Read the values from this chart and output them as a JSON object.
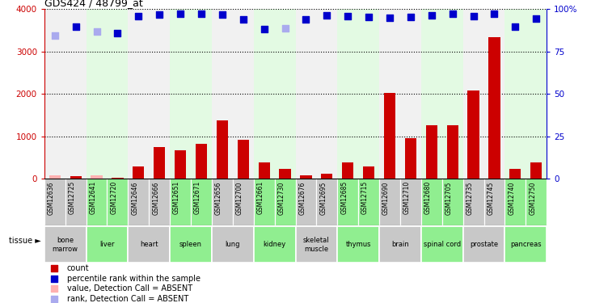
{
  "title": "GDS424 / 48799_at",
  "samples": [
    "GSM12636",
    "GSM12725",
    "GSM12641",
    "GSM12720",
    "GSM12646",
    "GSM12666",
    "GSM12651",
    "GSM12671",
    "GSM12656",
    "GSM12700",
    "GSM12661",
    "GSM12730",
    "GSM12676",
    "GSM12695",
    "GSM12685",
    "GSM12715",
    "GSM12690",
    "GSM12710",
    "GSM12680",
    "GSM12705",
    "GSM12735",
    "GSM12745",
    "GSM12740",
    "GSM12750"
  ],
  "counts": [
    80,
    60,
    80,
    30,
    300,
    750,
    680,
    820,
    1380,
    920,
    390,
    230,
    80,
    110,
    380,
    300,
    2020,
    950,
    1270,
    1270,
    2090,
    3340,
    230,
    390
  ],
  "absent_count": [
    true,
    false,
    true,
    false,
    false,
    false,
    false,
    false,
    false,
    false,
    false,
    false,
    false,
    false,
    false,
    false,
    false,
    false,
    false,
    false,
    false,
    false,
    false,
    false
  ],
  "percentile_rank": [
    3380,
    3580,
    3470,
    3430,
    3840,
    3870,
    3890,
    3900,
    3870,
    3750,
    3520,
    3550,
    3760,
    3850,
    3830,
    3820,
    3790,
    3820,
    3860,
    3900,
    3840,
    3900,
    3590,
    3770
  ],
  "absent_rank": [
    true,
    false,
    true,
    false,
    false,
    false,
    false,
    false,
    false,
    false,
    false,
    true,
    false,
    false,
    false,
    false,
    false,
    false,
    false,
    false,
    false,
    false,
    false,
    false
  ],
  "tissues": [
    {
      "name": "bone\nmarrow",
      "samples": [
        "GSM12636",
        "GSM12725"
      ],
      "color": "#c8c8c8"
    },
    {
      "name": "liver",
      "samples": [
        "GSM12641",
        "GSM12720"
      ],
      "color": "#90ee90"
    },
    {
      "name": "heart",
      "samples": [
        "GSM12646",
        "GSM12666"
      ],
      "color": "#c8c8c8"
    },
    {
      "name": "spleen",
      "samples": [
        "GSM12651",
        "GSM12671"
      ],
      "color": "#90ee90"
    },
    {
      "name": "lung",
      "samples": [
        "GSM12656",
        "GSM12700"
      ],
      "color": "#c8c8c8"
    },
    {
      "name": "kidney",
      "samples": [
        "GSM12661",
        "GSM12730"
      ],
      "color": "#90ee90"
    },
    {
      "name": "skeletal\nmuscle",
      "samples": [
        "GSM12676",
        "GSM12695"
      ],
      "color": "#c8c8c8"
    },
    {
      "name": "thymus",
      "samples": [
        "GSM12685",
        "GSM12715"
      ],
      "color": "#90ee90"
    },
    {
      "name": "brain",
      "samples": [
        "GSM12690",
        "GSM12710"
      ],
      "color": "#c8c8c8"
    },
    {
      "name": "spinal cord",
      "samples": [
        "GSM12680",
        "GSM12705"
      ],
      "color": "#90ee90"
    },
    {
      "name": "prostate",
      "samples": [
        "GSM12735",
        "GSM12745"
      ],
      "color": "#c8c8c8"
    },
    {
      "name": "pancreas",
      "samples": [
        "GSM12740",
        "GSM12750"
      ],
      "color": "#90ee90"
    }
  ],
  "bar_color": "#cc0000",
  "absent_bar_color": "#ffb0b0",
  "rank_color": "#0000cc",
  "absent_rank_color": "#aaaaee",
  "ylim_left": [
    0,
    4000
  ],
  "yticks_left": [
    0,
    1000,
    2000,
    3000,
    4000
  ],
  "right_tick_positions": [
    0,
    1000,
    2000,
    3000,
    4000
  ],
  "right_tick_labels": [
    "0",
    "25",
    "50",
    "75",
    "100%"
  ],
  "grid_lines": [
    1000,
    2000,
    3000,
    4000
  ],
  "legend_items": [
    {
      "color": "#cc0000",
      "label": "count"
    },
    {
      "color": "#0000cc",
      "label": "percentile rank within the sample"
    },
    {
      "color": "#ffb0b0",
      "label": "value, Detection Call = ABSENT"
    },
    {
      "color": "#aaaaee",
      "label": "rank, Detection Call = ABSENT"
    }
  ]
}
